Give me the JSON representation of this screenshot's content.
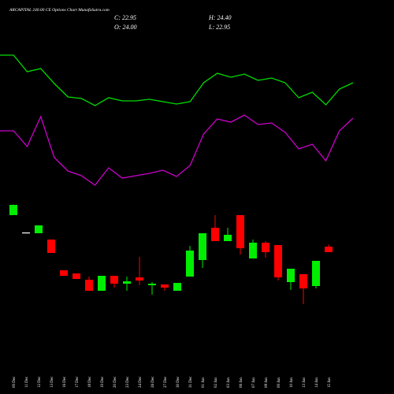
{
  "chart_data": [
    {
      "type": "candlestick",
      "title": "ARCAPITAL 240.00 CE Options Chart MunafaSutra.com",
      "close_label": "C: 22.95",
      "high_label": "H: 24.40",
      "open_label": "O: 24.00",
      "low_label": "L: 22.95",
      "categories": [
        "09 Dec",
        "11 Dec",
        "12 Dec",
        "13 Dec",
        "16 Dec",
        "17 Dec",
        "18 Dec",
        "19 Dec",
        "20 Dec",
        "23 Dec",
        "24 Dec",
        "26 Dec",
        "27 Dec",
        "30 Dec",
        "31 Dec",
        "01 Jan",
        "02 Jan",
        "03 Jan",
        "06 Jan",
        "07 Jan",
        "08 Jan",
        "09 Jan",
        "10 Jan",
        "13 Jan",
        "14 Jan",
        "15 Jan"
      ],
      "open": [
        30.0,
        26.7,
        26.55,
        25.35,
        19.5,
        18.9,
        17.7,
        15.6,
        18.45,
        16.95,
        18.15,
        16.65,
        16.8,
        15.6,
        18.3,
        21.45,
        27.6,
        25.05,
        30.0,
        21.75,
        24.75,
        24.3,
        17.25,
        18.75,
        16.5,
        24.0
      ],
      "high": [
        32.0,
        26.7,
        28.05,
        25.35,
        19.5,
        18.9,
        18.3,
        18.45,
        18.45,
        18.3,
        22.05,
        17.25,
        16.8,
        17.1,
        24.15,
        26.55,
        30.0,
        27.6,
        30.0,
        25.35,
        25.05,
        24.3,
        19.8,
        18.75,
        21.3,
        24.4
      ],
      "low": [
        30.0,
        26.7,
        26.55,
        22.8,
        18.45,
        17.85,
        15.6,
        15.6,
        16.2,
        15.6,
        16.65,
        14.85,
        15.6,
        15.6,
        18.3,
        19.95,
        25.05,
        25.05,
        22.5,
        21.75,
        21.9,
        17.55,
        15.75,
        13.05,
        16.05,
        22.95
      ],
      "close": [
        31.95,
        26.7,
        28.05,
        22.8,
        18.45,
        17.85,
        15.6,
        18.45,
        16.95,
        17.4,
        17.55,
        16.95,
        16.2,
        17.1,
        23.25,
        26.55,
        25.05,
        26.25,
        23.7,
        24.75,
        22.95,
        18.15,
        19.8,
        16.05,
        21.3,
        22.95
      ],
      "ylim": [
        12.45,
        32.7
      ],
      "up_color": "#00ee00",
      "down_color": "#ff0000",
      "doji_color": "#ffffff"
    },
    {
      "type": "line",
      "ylim": [
        0,
        200
      ],
      "series": [
        {
          "color": "#00dd00",
          "values": [
            180,
            180,
            159,
            163,
            144,
            127,
            125,
            116,
            126,
            122,
            122,
            124,
            121,
            118,
            121,
            145,
            157,
            152,
            156,
            148,
            151,
            145,
            126,
            133,
            117,
            137,
            145
          ]
        },
        {
          "color": "#cc00cc",
          "values": [
            84,
            84,
            64,
            102,
            50,
            33,
            27,
            15,
            37,
            24,
            27,
            30,
            34,
            26,
            40,
            80,
            99,
            95,
            104,
            92,
            94,
            82,
            61,
            67,
            46,
            84,
            100
          ]
        }
      ]
    }
  ]
}
